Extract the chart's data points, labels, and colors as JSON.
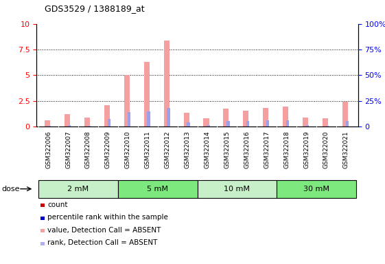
{
  "title": "GDS3529 / 1388189_at",
  "samples": [
    "GSM322006",
    "GSM322007",
    "GSM322008",
    "GSM322009",
    "GSM322010",
    "GSM322011",
    "GSM322012",
    "GSM322013",
    "GSM322014",
    "GSM322015",
    "GSM322016",
    "GSM322017",
    "GSM322018",
    "GSM322019",
    "GSM322020",
    "GSM322021"
  ],
  "count_values": [
    0.6,
    1.2,
    0.9,
    2.1,
    5.05,
    6.3,
    8.4,
    1.35,
    0.85,
    1.75,
    1.55,
    1.8,
    1.95,
    0.9,
    0.85,
    2.4
  ],
  "rank_values": [
    0.08,
    0.15,
    0.12,
    0.75,
    1.45,
    1.5,
    1.85,
    0.45,
    0.18,
    0.55,
    0.55,
    0.65,
    0.65,
    0.15,
    0.12,
    0.55
  ],
  "count_color": "#f4a0a0",
  "rank_color": "#a0a0e8",
  "ylim_left": [
    0,
    10
  ],
  "ylim_right": [
    0,
    100
  ],
  "yticks_left": [
    0,
    2.5,
    5.0,
    7.5,
    10
  ],
  "yticks_right": [
    0,
    25,
    50,
    75,
    100
  ],
  "groups": [
    {
      "label": "2 mM",
      "start": 0,
      "end": 3
    },
    {
      "label": "5 mM",
      "start": 4,
      "end": 7
    },
    {
      "label": "10 mM",
      "start": 8,
      "end": 11
    },
    {
      "label": "30 mM",
      "start": 12,
      "end": 15
    }
  ],
  "group_colors": [
    "#c8f0c8",
    "#7de87d",
    "#c8f0c8",
    "#7de87d"
  ],
  "dose_label": "dose",
  "bar_width": 0.28,
  "bg_color": "#d3d3d3",
  "plot_bg": "#ffffff",
  "legend_items": [
    {
      "label": "count",
      "color": "#cc0000"
    },
    {
      "label": "percentile rank within the sample",
      "color": "#0000cc"
    },
    {
      "label": "value, Detection Call = ABSENT",
      "color": "#f4a0a0"
    },
    {
      "label": "rank, Detection Call = ABSENT",
      "color": "#b0b0f0"
    }
  ]
}
